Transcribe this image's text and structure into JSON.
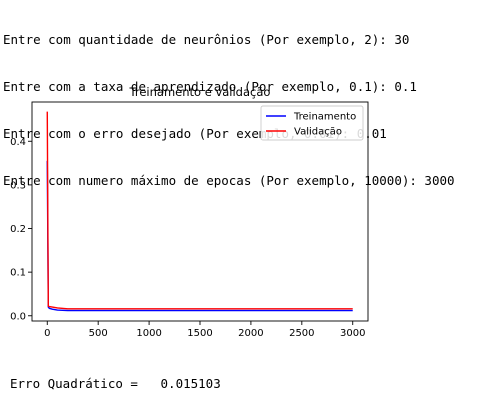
{
  "console": {
    "prompts": [
      "Entre com quantidade de neurônios (Por exemplo, 2): 30",
      "Entre com a taxa de aprendizado (Por exemplo, 0.1): 0.1",
      "Entre com o erro desejado (Por exemplo, 0.01): 0.01",
      "Entre com numero máximo de epocas (Por exemplo, 10000): 3000"
    ],
    "result": "Erro Quadrático =   0.015103"
  },
  "chart_data": {
    "type": "line",
    "title": "Treinamento e validação",
    "xlabel": "",
    "ylabel": "",
    "xlim": [
      -150,
      3150
    ],
    "ylim": [
      -0.012,
      0.49
    ],
    "xticks": [
      0,
      500,
      1000,
      1500,
      2000,
      2500,
      3000
    ],
    "xtick_labels": [
      "0",
      "500",
      "1000",
      "1500",
      "2000",
      "2500",
      "3000"
    ],
    "yticks": [
      0.0,
      0.1,
      0.2,
      0.3,
      0.4
    ],
    "ytick_labels": [
      "0.0",
      "0.1",
      "0.2",
      "0.3",
      "0.4"
    ],
    "grid": false,
    "legend": "top-right",
    "series": [
      {
        "name": "Treinamento",
        "color": "#0000ff",
        "x": [
          0,
          10,
          20,
          50,
          100,
          200,
          500,
          1000,
          1500,
          2000,
          2500,
          3000
        ],
        "y": [
          0.355,
          0.02,
          0.017,
          0.015,
          0.013,
          0.012,
          0.012,
          0.012,
          0.012,
          0.012,
          0.012,
          0.012
        ]
      },
      {
        "name": "Validação",
        "color": "#ff0000",
        "x": [
          0,
          10,
          20,
          50,
          100,
          200,
          500,
          1000,
          1500,
          2000,
          2500,
          3000
        ],
        "y": [
          0.468,
          0.022,
          0.021,
          0.02,
          0.018,
          0.016,
          0.016,
          0.016,
          0.016,
          0.016,
          0.016,
          0.016
        ]
      }
    ]
  }
}
